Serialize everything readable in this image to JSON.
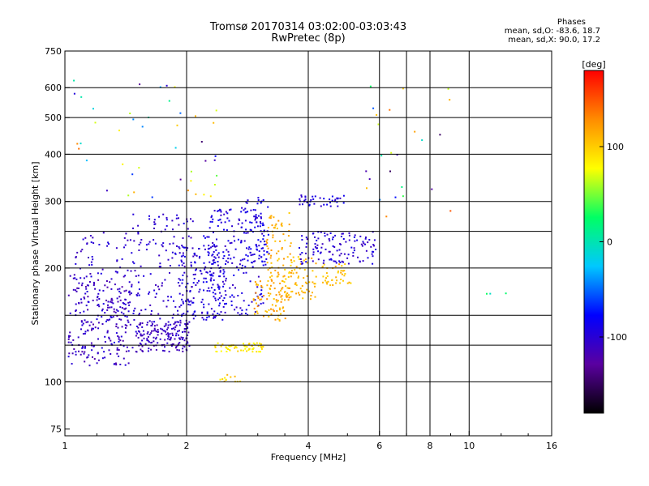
{
  "chart_data": {
    "type": "scatter",
    "title": "Tromsø 20170314 03:02:00-03:03:43",
    "subtitle": "RwPretec (8p)",
    "xlabel": "Frequency [MHz]",
    "ylabel": "Stationary phase Virtual Height [km]",
    "x_scale": "log",
    "y_scale": "log",
    "xlim": [
      1,
      16
    ],
    "ylim": [
      72,
      750
    ],
    "x_ticks": [
      1,
      2,
      4,
      6,
      8,
      10,
      16
    ],
    "y_ticks": [
      75,
      100,
      200,
      300,
      400,
      500,
      600,
      750
    ],
    "grid": true,
    "phase_stats": {
      "title": "Phases",
      "line_o": "mean, sd,O: -83.6, 18.7",
      "line_x": "mean, sd,X:  90.0, 17.2"
    },
    "colorbar": {
      "label": "[deg]",
      "range": [
        -180,
        180
      ],
      "ticks": [
        -100,
        0,
        100
      ],
      "colors": [
        "#000000",
        "#5a00a0",
        "#0000ff",
        "#00c8ff",
        "#00ff64",
        "#ffff00",
        "#ff8c00",
        "#ff0000"
      ]
    },
    "clusters": [
      {
        "f": [
          1.02,
          1.45
        ],
        "h": [
          110,
          195
        ],
        "phase": [
          -125,
          -95
        ],
        "n": 200
      },
      {
        "f": [
          1.5,
          2.05
        ],
        "h": [
          120,
          145
        ],
        "phase": [
          -120,
          -100
        ],
        "n": 160
      },
      {
        "f": [
          1.05,
          1.5
        ],
        "h": [
          120,
          250
        ],
        "phase": [
          -115,
          -90
        ],
        "n": 110
      },
      {
        "f": [
          1.45,
          2.1
        ],
        "h": [
          140,
          280
        ],
        "phase": [
          -115,
          -90
        ],
        "n": 150
      },
      {
        "f": [
          1.9,
          2.5
        ],
        "h": [
          145,
          230
        ],
        "phase": [
          -110,
          -85
        ],
        "n": 160
      },
      {
        "f": [
          2.2,
          3.1
        ],
        "h": [
          150,
          290
        ],
        "phase": [
          -110,
          -80
        ],
        "n": 200
      },
      {
        "f": [
          2.8,
          3.2
        ],
        "h": [
          200,
          310
        ],
        "phase": [
          -100,
          -80
        ],
        "n": 60
      },
      {
        "f": [
          3.15,
          3.65
        ],
        "h": [
          165,
          280
        ],
        "phase": [
          95,
          125
        ],
        "n": 90
      },
      {
        "f": [
          2.9,
          3.6
        ],
        "h": [
          145,
          185
        ],
        "phase": [
          100,
          130
        ],
        "n": 70
      },
      {
        "f": [
          3.5,
          4.2
        ],
        "h": [
          165,
          215
        ],
        "phase": [
          95,
          120
        ],
        "n": 60
      },
      {
        "f": [
          4.3,
          5.1
        ],
        "h": [
          180,
          205
        ],
        "phase": [
          95,
          120
        ],
        "n": 40
      },
      {
        "f": [
          2.35,
          3.1
        ],
        "h": [
          120,
          127
        ],
        "phase": [
          75,
          100
        ],
        "n": 60
      },
      {
        "f": [
          2.4,
          2.75
        ],
        "h": [
          100,
          106
        ],
        "phase": [
          80,
          110
        ],
        "n": 12
      },
      {
        "f": [
          3.8,
          4.9
        ],
        "h": [
          290,
          312
        ],
        "phase": [
          -110,
          -80
        ],
        "n": 40
      },
      {
        "f": [
          3.8,
          5.9
        ],
        "h": [
          205,
          250
        ],
        "phase": [
          -115,
          -85
        ],
        "n": 120
      },
      {
        "f": [
          1.05,
          2.5
        ],
        "h": [
          300,
          650
        ],
        "phase": [
          -150,
          150
        ],
        "n": 45
      },
      {
        "f": [
          5.5,
          9.0
        ],
        "h": [
          250,
          620
        ],
        "phase": [
          -150,
          150
        ],
        "n": 25
      },
      {
        "f": [
          11.0,
          12.5
        ],
        "h": [
          170,
          174
        ],
        "phase": [
          -80,
          150
        ],
        "n": 3
      }
    ]
  }
}
